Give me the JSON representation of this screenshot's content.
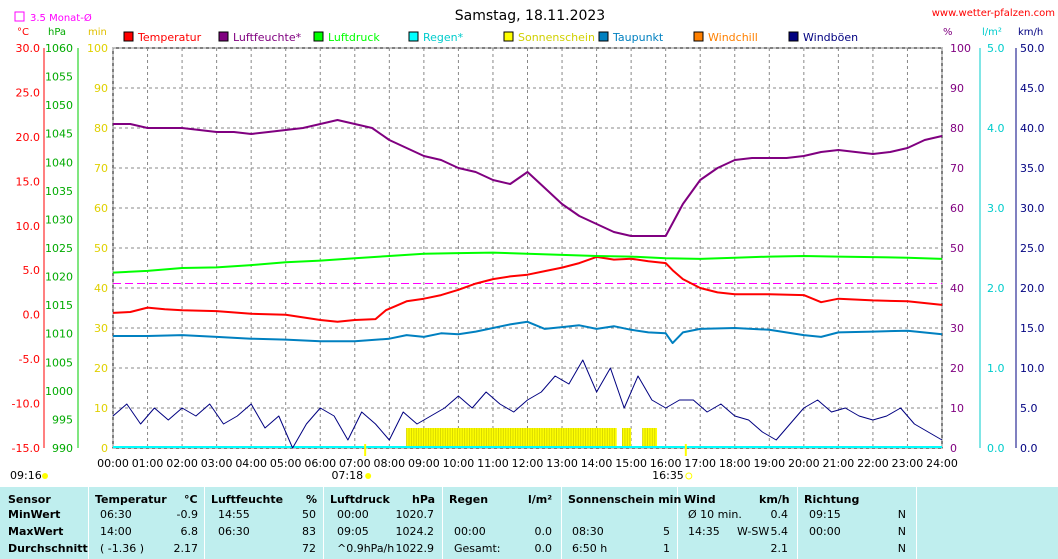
{
  "chart_data": {
    "type": "line",
    "title": "Samstag, 18.11.2023",
    "website": "www.wetter-pfalzen.com",
    "monthly_avg_label": "3.5 Monat-Ø",
    "axes": {
      "temp": {
        "unit": "°C",
        "range": [
          -15,
          30
        ],
        "ticks": [
          "30.0",
          "25.0",
          "20.0",
          "15.0",
          "10.0",
          "5.0",
          "0.0",
          "-5.0",
          "-10.0",
          "-15.0"
        ],
        "color": "#ff0000"
      },
      "pressure": {
        "unit": "hPa",
        "range": [
          990,
          1060
        ],
        "ticks": [
          "1060",
          "1055",
          "1050",
          "1045",
          "1040",
          "1035",
          "1030",
          "1025",
          "1020",
          "1015",
          "1010",
          "1005",
          "1000",
          "995",
          "990"
        ],
        "color": "#00cc00"
      },
      "sunshine": {
        "unit": "min",
        "range": [
          0,
          100
        ],
        "ticks": [
          "100",
          "90",
          "80",
          "70",
          "60",
          "50",
          "40",
          "30",
          "20",
          "10",
          "0"
        ],
        "color": "#e0e000"
      },
      "humidity": {
        "unit": "%",
        "range": [
          0,
          100
        ],
        "ticks": [
          "100",
          "90",
          "80",
          "70",
          "60",
          "50",
          "40",
          "30",
          "20",
          "10",
          "0"
        ],
        "color": "#800080"
      },
      "rain": {
        "unit": "l/m²",
        "range": [
          0,
          5
        ],
        "ticks": [
          "5.0",
          "4.0",
          "3.0",
          "2.0",
          "1.0",
          "0.0"
        ],
        "color": "#00cccc"
      },
      "wind": {
        "unit": "km/h",
        "range": [
          0,
          50
        ],
        "ticks": [
          "50.0",
          "45.0",
          "40.0",
          "35.0",
          "30.0",
          "25.0",
          "20.0",
          "15.0",
          "10.0",
          "5.0",
          "0.0"
        ],
        "color": "#000080"
      }
    },
    "x_ticks": [
      "00:00",
      "01:00",
      "02:00",
      "03:00",
      "04:00",
      "05:00",
      "06:00",
      "07:00",
      "08:00",
      "09:00",
      "10:00",
      "11:00",
      "12:00",
      "13:00",
      "14:00",
      "15:00",
      "16:00",
      "17:00",
      "18:00",
      "19:00",
      "20:00",
      "21:00",
      "22:00",
      "23:00",
      "24:00"
    ],
    "sunrise": "07:18",
    "sunset": "16:35",
    "moon_time": "09:16",
    "legend": [
      {
        "name": "Temperatur",
        "color": "#ff0000"
      },
      {
        "name": "Luftfeuchte*",
        "color": "#800080"
      },
      {
        "name": "Luftdruck",
        "color": "#00ff00"
      },
      {
        "name": "Regen*",
        "color": "#00ffff"
      },
      {
        "name": "Sonnenschein",
        "color": "#ffff00"
      },
      {
        "name": "Taupunkt",
        "color": "#0080c0"
      },
      {
        "name": "Windchill",
        "color": "#ff8000"
      },
      {
        "name": "Windböen",
        "color": "#000080"
      }
    ],
    "monthly_avg_temp": 3.5,
    "series": [
      {
        "name": "Temperatur",
        "axis": "temp",
        "color": "#ff0000",
        "x": [
          0,
          0.5,
          1,
          1.5,
          2,
          3,
          4,
          5,
          6,
          6.5,
          7,
          7.6,
          7.9,
          8.2,
          8.5,
          9,
          9.5,
          10,
          10.5,
          11,
          11.5,
          12,
          12.5,
          13,
          13.5,
          14,
          14.5,
          15,
          15.5,
          16,
          16.2,
          16.5,
          17,
          17.5,
          18,
          19,
          20,
          20.5,
          21,
          22,
          23,
          24
        ],
        "y": [
          0.2,
          0.3,
          0.8,
          0.6,
          0.5,
          0.4,
          0.1,
          0.0,
          -0.6,
          -0.8,
          -0.6,
          -0.5,
          0.5,
          1.0,
          1.5,
          1.8,
          2.2,
          2.8,
          3.5,
          4.0,
          4.3,
          4.5,
          4.9,
          5.3,
          5.8,
          6.5,
          6.2,
          6.3,
          6.0,
          5.8,
          5.0,
          4.0,
          3.0,
          2.5,
          2.3,
          2.3,
          2.2,
          1.4,
          1.8,
          1.6,
          1.5,
          1.1
        ]
      },
      {
        "name": "Luftfeuchte*",
        "axis": "humidity",
        "color": "#800080",
        "x": [
          0,
          0.5,
          1,
          1.5,
          2,
          2.5,
          3,
          3.5,
          4,
          4.5,
          5,
          5.5,
          6,
          6.5,
          7,
          7.5,
          8,
          8.5,
          9,
          9.5,
          10,
          10.5,
          11,
          11.5,
          12,
          12.5,
          13,
          13.5,
          14,
          14.5,
          15,
          15.5,
          16,
          16.5,
          17,
          17.5,
          18,
          18.5,
          19,
          19.5,
          20,
          20.5,
          21,
          21.5,
          22,
          22.5,
          23,
          23.5,
          24
        ],
        "y": [
          81,
          81,
          80,
          80,
          80,
          79.5,
          79,
          79,
          78.5,
          79,
          79.5,
          80,
          81,
          82,
          81,
          80,
          77,
          75,
          73,
          72,
          70,
          69,
          67,
          66,
          69,
          65,
          61,
          58,
          56,
          54,
          53,
          53,
          53,
          61,
          67,
          70,
          72,
          72.5,
          72.5,
          72.5,
          73,
          74,
          74.5,
          74,
          73.5,
          74,
          75,
          77,
          78
        ]
      },
      {
        "name": "Luftdruck",
        "axis": "pressure",
        "color": "#00ff00",
        "x": [
          0,
          1,
          2,
          3,
          4,
          5,
          6,
          7,
          8,
          9,
          10,
          11,
          12,
          13,
          14,
          15,
          16,
          17,
          18,
          19,
          20,
          21,
          22,
          23,
          24
        ],
        "y": [
          1020.7,
          1021.0,
          1021.5,
          1021.6,
          1022.0,
          1022.5,
          1022.8,
          1023.2,
          1023.6,
          1024.0,
          1024.1,
          1024.2,
          1024.0,
          1023.8,
          1023.6,
          1023.5,
          1023.2,
          1023.1,
          1023.3,
          1023.5,
          1023.6,
          1023.5,
          1023.4,
          1023.3,
          1023.1
        ]
      },
      {
        "name": "Taupunkt",
        "axis": "temp",
        "color": "#0080c0",
        "x": [
          0,
          1,
          2,
          3,
          4,
          5,
          6,
          7,
          8,
          8.5,
          9,
          9.5,
          10,
          10.5,
          11,
          11.5,
          12,
          12.5,
          13,
          13.5,
          14,
          14.5,
          15,
          15.5,
          16,
          16.2,
          16.5,
          17,
          18,
          19,
          20,
          20.5,
          21,
          22,
          23,
          24
        ],
        "y": [
          -2.4,
          -2.4,
          -2.3,
          -2.5,
          -2.7,
          -2.8,
          -3.0,
          -3.0,
          -2.7,
          -2.3,
          -2.5,
          -2.1,
          -2.2,
          -1.9,
          -1.5,
          -1.1,
          -0.8,
          -1.6,
          -1.4,
          -1.2,
          -1.6,
          -1.3,
          -1.7,
          -2.0,
          -2.1,
          -3.2,
          -2.0,
          -1.6,
          -1.5,
          -1.7,
          -2.3,
          -2.5,
          -2.0,
          -1.9,
          -1.8,
          -2.2
        ]
      },
      {
        "name": "Windböen",
        "axis": "wind",
        "color": "#000080",
        "x": [
          0,
          0.4,
          0.8,
          1.2,
          1.6,
          2,
          2.4,
          2.8,
          3.2,
          3.6,
          4,
          4.4,
          4.8,
          5.2,
          5.6,
          6,
          6.4,
          6.8,
          7.2,
          7.6,
          8,
          8.4,
          8.8,
          9.2,
          9.6,
          10,
          10.4,
          10.8,
          11.2,
          11.6,
          12,
          12.4,
          12.8,
          13.2,
          13.6,
          14,
          14.4,
          14.8,
          15.2,
          15.6,
          16,
          16.4,
          16.8,
          17.2,
          17.6,
          18,
          18.4,
          18.8,
          19.2,
          19.6,
          20,
          20.4,
          20.8,
          21.2,
          21.6,
          22,
          22.4,
          22.8,
          23.2,
          23.6,
          24
        ],
        "y": [
          4,
          5.5,
          3,
          5,
          3.5,
          5,
          4,
          5.5,
          3,
          4,
          5.5,
          2.5,
          4,
          0,
          3,
          5,
          4,
          1,
          4.5,
          3,
          1,
          4.5,
          3,
          4,
          5,
          6.5,
          5,
          7,
          5.5,
          4.5,
          6,
          7,
          9,
          8,
          11,
          7,
          10,
          5,
          9,
          6,
          5,
          6,
          6,
          4.5,
          5.5,
          4,
          3.5,
          2,
          1,
          3,
          5,
          6,
          4.5,
          5,
          4,
          3.5,
          4,
          5,
          3,
          2,
          1
        ]
      }
    ],
    "sunshine_periods": [
      {
        "start": "08:30",
        "end": "14:35"
      },
      {
        "start": "14:45",
        "end": "15:00"
      },
      {
        "start": "15:20",
        "end": "15:45"
      }
    ],
    "rain_value": 0.0
  },
  "table": {
    "headers": {
      "sensor": "Sensor",
      "temp": "Temperatur",
      "temp_unit": "°C",
      "hum": "Luftfeuchte",
      "hum_unit": "%",
      "press": "Luftdruck",
      "press_unit": "hPa",
      "rain": "Regen",
      "rain_unit": "l/m²",
      "sun": "Sonnenschein min",
      "wind": "Wind",
      "wind_unit": "km/h",
      "dir": "Richtung"
    },
    "rows": [
      {
        "label": "MinWert",
        "t_time": "06:30",
        "t_val": "-0.9",
        "h_time": "14:55",
        "h_val": "50",
        "p_time": "00:00",
        "p_val": "1020.7",
        "r_time": "",
        "r_val": "",
        "s_time": "",
        "s_val": "",
        "w_time": "Ø 10 min.",
        "w_dir": "",
        "w_val": "0.4",
        "d_time": "09:15",
        "d_val": "N"
      },
      {
        "label": "MaxWert",
        "t_time": "14:00",
        "t_val": "6.8",
        "h_time": "06:30",
        "h_val": "83",
        "p_time": "09:05",
        "p_val": "1024.2",
        "r_time": "00:00",
        "r_val": "0.0",
        "s_time": "08:30",
        "s_val": "5",
        "w_time": "14:35",
        "w_dir": "W-SW",
        "w_val": "5.4",
        "d_time": "00:00",
        "d_val": "N"
      },
      {
        "label": "Durchschnitt",
        "t_time": "( -1.36 )",
        "t_val": "2.17",
        "h_time": "",
        "h_val": "72",
        "p_time": "^0.9hPa/h",
        "p_val": "1022.9",
        "r_time": "Gesamt:",
        "r_val": "0.0",
        "s_time": "6:50 h",
        "s_val": "1",
        "w_time": "",
        "w_dir": "",
        "w_val": "2.1",
        "d_time": "",
        "d_val": "N"
      }
    ]
  }
}
